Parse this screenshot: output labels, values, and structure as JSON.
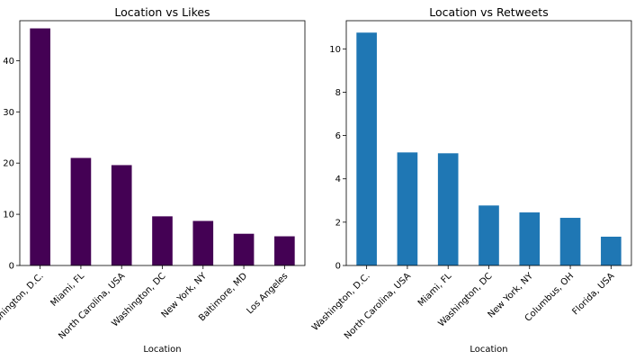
{
  "chart_data": [
    {
      "type": "bar",
      "title": "Location vs Likes",
      "xlabel": "Location",
      "ylabel": "",
      "categories": [
        "Washington, D.C.",
        "Miami, FL",
        "North Carolina, USA",
        "Washington, DC",
        "New York, NY",
        "Baltimore, MD",
        "Los Angeles"
      ],
      "values": [
        46.3,
        21.0,
        19.6,
        9.6,
        8.7,
        6.2,
        5.7
      ],
      "ylim": [
        0,
        47.8
      ],
      "yticks": [
        0,
        10,
        20,
        30,
        40
      ],
      "color": "#440154",
      "grid": false
    },
    {
      "type": "bar",
      "title": "Location vs Retweets",
      "xlabel": "Location",
      "ylabel": "",
      "categories": [
        "Washington, D.C.",
        "North Carolina, USA",
        "Miami, FL",
        "Washington, DC",
        "New York, NY",
        "Columbus, OH",
        "Florida, USA"
      ],
      "values": [
        10.75,
        5.22,
        5.18,
        2.77,
        2.45,
        2.2,
        1.33
      ],
      "ylim": [
        0,
        11.3
      ],
      "yticks": [
        0,
        2,
        4,
        6,
        8,
        10
      ],
      "color": "#1f77b4",
      "grid": false
    }
  ]
}
